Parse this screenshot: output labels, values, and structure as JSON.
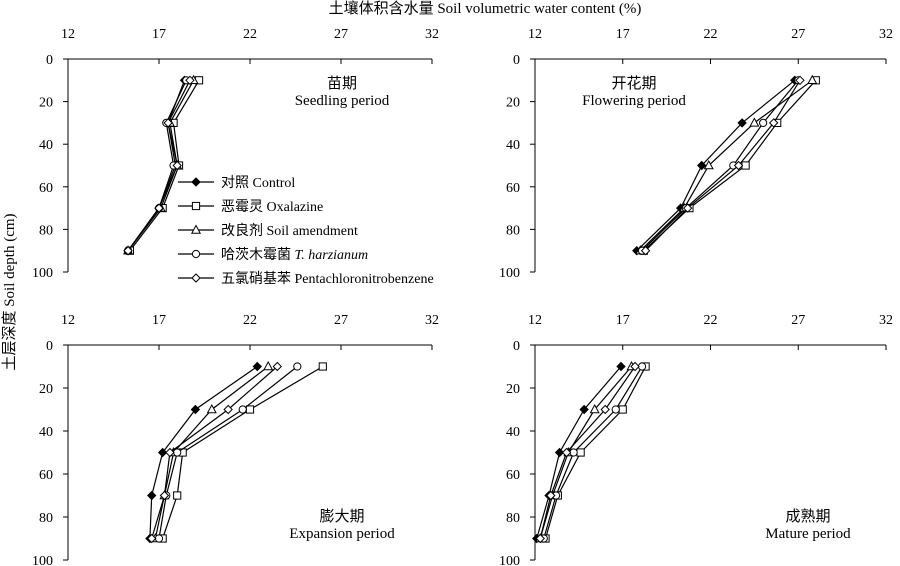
{
  "chart_data": {
    "type": "line",
    "x_axis_title": "土壤体积含水量 Soil volumetric water content (%)",
    "y_axis_title": "土层深度 Soil depth (cm)",
    "xlim": [
      12,
      32
    ],
    "ylim": [
      0,
      100
    ],
    "xticks": [
      "12",
      "17",
      "22",
      "27",
      "32"
    ],
    "yticks": [
      "0",
      "20",
      "40",
      "60",
      "80",
      "100"
    ],
    "legend": [
      {
        "label_zh": "对照",
        "label_en": "Control",
        "label_en_italic": "",
        "marker": "diamond-filled"
      },
      {
        "label_zh": "恶霉灵",
        "label_en": "Oxalazine",
        "label_en_italic": "",
        "marker": "square-open"
      },
      {
        "label_zh": "改良剂",
        "label_en": "Soil amendment",
        "label_en_italic": "",
        "marker": "triangle-open"
      },
      {
        "label_zh": "哈茨木霉菌",
        "label_en": "",
        "label_en_italic": "T. harzianum",
        "marker": "circle-open"
      },
      {
        "label_zh": "五氯硝基苯",
        "label_en": "Pentachloronitrobenzene",
        "label_en_italic": "",
        "marker": "diamond-open"
      }
    ],
    "depths": [
      10,
      30,
      50,
      70,
      90
    ],
    "panels": [
      {
        "title_zh": "苗期",
        "title_en": "Seedling period",
        "series": [
          {
            "name": "Control",
            "x": [
              18.4,
              17.5,
              17.9,
              17.0,
              15.3
            ]
          },
          {
            "name": "Oxalazine",
            "x": [
              19.2,
              17.8,
              18.1,
              17.2,
              15.4
            ]
          },
          {
            "name": "Soil amendment",
            "x": [
              18.9,
              17.6,
              18.0,
              17.1,
              15.3
            ]
          },
          {
            "name": "T. harzianum",
            "x": [
              18.5,
              17.4,
              17.8,
              17.0,
              15.3
            ]
          },
          {
            "name": "Pentachloronitrobenzene",
            "x": [
              18.7,
              17.5,
              18.0,
              17.0,
              15.3
            ]
          }
        ]
      },
      {
        "title_zh": "开花期",
        "title_en": "Flowering period",
        "series": [
          {
            "name": "Control",
            "x": [
              26.8,
              23.8,
              21.5,
              20.3,
              17.8
            ]
          },
          {
            "name": "Oxalazine",
            "x": [
              28.0,
              25.8,
              24.0,
              20.8,
              18.2
            ]
          },
          {
            "name": "Soil amendment",
            "x": [
              27.8,
              24.5,
              21.9,
              20.5,
              18.0
            ]
          },
          {
            "name": "T. harzianum",
            "x": [
              27.0,
              25.0,
              23.3,
              20.6,
              18.1
            ]
          },
          {
            "name": "Pentachloronitrobenzene",
            "x": [
              27.1,
              25.6,
              23.6,
              20.7,
              18.3
            ]
          }
        ]
      },
      {
        "title_zh": "膨大期",
        "title_en": "Expansion period",
        "series": [
          {
            "name": "Control",
            "x": [
              22.4,
              19.0,
              17.2,
              16.6,
              16.5
            ]
          },
          {
            "name": "Oxalazine",
            "x": [
              26.0,
              22.0,
              18.3,
              18.0,
              17.2
            ]
          },
          {
            "name": "Soil amendment",
            "x": [
              23.0,
              19.9,
              17.8,
              17.3,
              16.8
            ]
          },
          {
            "name": "T. harzianum",
            "x": [
              24.6,
              21.6,
              18.0,
              17.4,
              17.0
            ]
          },
          {
            "name": "Pentachloronitrobenzene",
            "x": [
              23.5,
              20.8,
              17.6,
              17.3,
              16.6
            ]
          }
        ]
      },
      {
        "title_zh": "成熟期",
        "title_en": "Mature period",
        "series": [
          {
            "name": "Control",
            "x": [
              16.9,
              14.8,
              13.4,
              12.8,
              12.1
            ]
          },
          {
            "name": "Oxalazine",
            "x": [
              18.3,
              17.0,
              14.6,
              13.3,
              12.6
            ]
          },
          {
            "name": "Soil amendment",
            "x": [
              17.5,
              15.4,
              13.9,
              13.0,
              12.3
            ]
          },
          {
            "name": "T. harzianum",
            "x": [
              18.1,
              16.6,
              14.2,
              13.2,
              12.5
            ]
          },
          {
            "name": "Pentachloronitrobenzene",
            "x": [
              17.7,
              16.0,
              13.8,
              12.9,
              12.3
            ]
          }
        ]
      }
    ]
  }
}
